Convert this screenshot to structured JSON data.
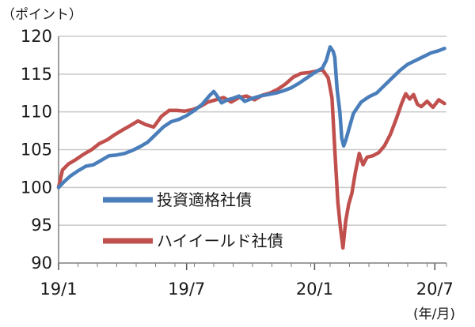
{
  "chart_data": {
    "type": "line",
    "title": "",
    "ylabel": "（ポイント）",
    "xlabel": "(年/月)",
    "ylim": [
      90,
      120
    ],
    "yticks": [
      "90",
      "95",
      "100",
      "105",
      "110",
      "115",
      "120"
    ],
    "xticks": [
      "19/1",
      "19/7",
      "20/1",
      "20/7"
    ],
    "grid": true,
    "legend_position": "center-left",
    "series": [
      {
        "name": "投資適格社債",
        "color": "#4a7ebb",
        "points": [
          [
            0,
            100
          ],
          [
            0.15,
            100.8
          ],
          [
            0.3,
            101.5
          ],
          [
            0.5,
            102.2
          ],
          [
            0.7,
            102.8
          ],
          [
            0.9,
            103.0
          ],
          [
            1.1,
            103.6
          ],
          [
            1.3,
            104.2
          ],
          [
            1.5,
            104.3
          ],
          [
            1.7,
            104.5
          ],
          [
            1.9,
            104.9
          ],
          [
            2.1,
            105.4
          ],
          [
            2.3,
            106.0
          ],
          [
            2.5,
            107.0
          ],
          [
            2.7,
            108.0
          ],
          [
            2.9,
            108.7
          ],
          [
            3.1,
            109.0
          ],
          [
            3.3,
            109.5
          ],
          [
            3.5,
            110.2
          ],
          [
            3.7,
            111.0
          ],
          [
            3.9,
            112.2
          ],
          [
            4.0,
            112.7
          ],
          [
            4.1,
            112.0
          ],
          [
            4.2,
            111.2
          ],
          [
            4.35,
            111.6
          ],
          [
            4.5,
            111.8
          ],
          [
            4.65,
            112.1
          ],
          [
            4.8,
            111.4
          ],
          [
            5.0,
            111.8
          ],
          [
            5.2,
            112.1
          ],
          [
            5.4,
            112.3
          ],
          [
            5.6,
            112.5
          ],
          [
            5.8,
            112.8
          ],
          [
            6.0,
            113.2
          ],
          [
            6.2,
            113.8
          ],
          [
            6.4,
            114.5
          ],
          [
            6.6,
            115.2
          ],
          [
            6.8,
            115.8
          ],
          [
            6.9,
            116.8
          ],
          [
            7.0,
            118.6
          ],
          [
            7.08,
            118.0
          ],
          [
            7.12,
            117.2
          ],
          [
            7.18,
            113.0
          ],
          [
            7.25,
            110.0
          ],
          [
            7.3,
            106.5
          ],
          [
            7.35,
            105.5
          ],
          [
            7.4,
            106.2
          ],
          [
            7.5,
            108.0
          ],
          [
            7.6,
            109.8
          ],
          [
            7.8,
            111.3
          ],
          [
            8.0,
            112.0
          ],
          [
            8.2,
            112.5
          ],
          [
            8.4,
            113.5
          ],
          [
            8.6,
            114.5
          ],
          [
            8.8,
            115.5
          ],
          [
            9.0,
            116.3
          ],
          [
            9.2,
            116.8
          ],
          [
            9.4,
            117.3
          ],
          [
            9.6,
            117.8
          ],
          [
            9.8,
            118.1
          ],
          [
            9.95,
            118.4
          ]
        ]
      },
      {
        "name": "ハイイールド社債",
        "color": "#c0504d",
        "points": [
          [
            0,
            100
          ],
          [
            0.1,
            102.3
          ],
          [
            0.25,
            103.1
          ],
          [
            0.45,
            103.7
          ],
          [
            0.65,
            104.4
          ],
          [
            0.85,
            105.0
          ],
          [
            1.05,
            105.8
          ],
          [
            1.25,
            106.3
          ],
          [
            1.45,
            107.0
          ],
          [
            1.65,
            107.6
          ],
          [
            1.85,
            108.2
          ],
          [
            2.05,
            108.8
          ],
          [
            2.25,
            108.3
          ],
          [
            2.45,
            108.0
          ],
          [
            2.65,
            109.4
          ],
          [
            2.85,
            110.2
          ],
          [
            3.05,
            110.2
          ],
          [
            3.25,
            110.1
          ],
          [
            3.45,
            110.3
          ],
          [
            3.65,
            110.7
          ],
          [
            3.85,
            111.3
          ],
          [
            4.05,
            111.6
          ],
          [
            4.25,
            111.9
          ],
          [
            4.45,
            111.3
          ],
          [
            4.65,
            111.9
          ],
          [
            4.85,
            112.1
          ],
          [
            5.05,
            111.6
          ],
          [
            5.25,
            112.2
          ],
          [
            5.45,
            112.5
          ],
          [
            5.65,
            113.0
          ],
          [
            5.85,
            113.7
          ],
          [
            6.05,
            114.6
          ],
          [
            6.25,
            115.1
          ],
          [
            6.45,
            115.2
          ],
          [
            6.65,
            115.4
          ],
          [
            6.8,
            115.6
          ],
          [
            6.95,
            114.5
          ],
          [
            7.05,
            111.8
          ],
          [
            7.12,
            105.0
          ],
          [
            7.2,
            98.0
          ],
          [
            7.27,
            94.5
          ],
          [
            7.33,
            92.0
          ],
          [
            7.4,
            95.5
          ],
          [
            7.48,
            97.8
          ],
          [
            7.56,
            99.2
          ],
          [
            7.65,
            102.0
          ],
          [
            7.75,
            104.5
          ],
          [
            7.85,
            103.0
          ],
          [
            7.95,
            104.0
          ],
          [
            8.1,
            104.2
          ],
          [
            8.25,
            104.6
          ],
          [
            8.4,
            105.5
          ],
          [
            8.55,
            107.0
          ],
          [
            8.7,
            109.0
          ],
          [
            8.85,
            111.2
          ],
          [
            8.95,
            112.4
          ],
          [
            9.05,
            111.7
          ],
          [
            9.15,
            112.3
          ],
          [
            9.25,
            111.0
          ],
          [
            9.35,
            110.7
          ],
          [
            9.5,
            111.4
          ],
          [
            9.65,
            110.6
          ],
          [
            9.8,
            111.6
          ],
          [
            9.95,
            111.1
          ]
        ]
      }
    ]
  }
}
